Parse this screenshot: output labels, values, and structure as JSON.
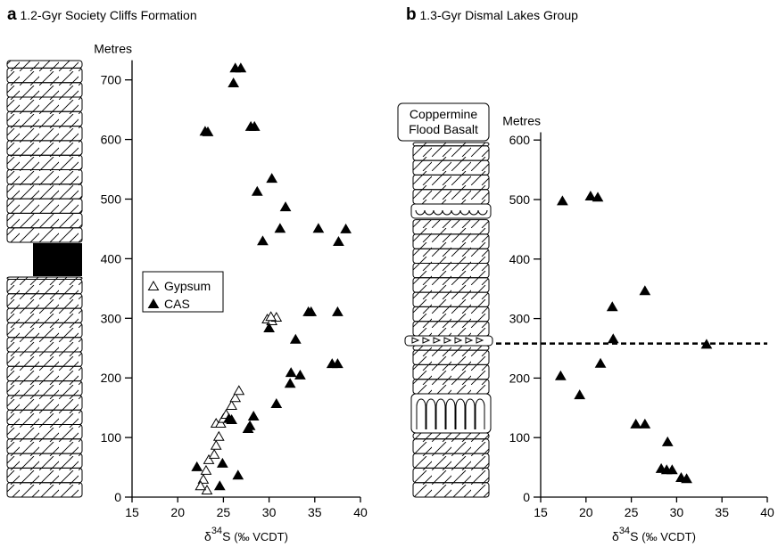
{
  "chart_data": [
    {
      "type": "scatter",
      "panel_label": "a",
      "title": "1.2-Gyr Society Cliffs Formation",
      "ylabel": "Metres",
      "xlabel": [
        "δ",
        "34",
        "S",
        "(‰ VCDT)"
      ],
      "xlim": [
        15,
        40
      ],
      "xticks": [
        15,
        20,
        25,
        30,
        35,
        40
      ],
      "ylim": [
        0,
        730
      ],
      "yticks": [
        0,
        100,
        200,
        300,
        400,
        500,
        600,
        700
      ],
      "legend": "left",
      "series": [
        {
          "name": "Gypsum",
          "marker": "open",
          "color": "#000000",
          "x": [
            23.2,
            22.8,
            22.5,
            23.1,
            23.4,
            24.0,
            24.2,
            24.5,
            24.2,
            24.7,
            25.0,
            25.3,
            25.9,
            26.3,
            26.7,
            29.8,
            30.3,
            30.8,
            30.2
          ],
          "values": [
            12,
            30,
            19,
            45,
            63,
            72,
            87,
            102,
            124,
            124,
            132,
            139,
            154,
            167,
            179,
            299,
            296,
            302,
            303
          ]
        },
        {
          "name": "CAS",
          "marker": "filled",
          "color": "#000000",
          "x": [
            26.3,
            26.9,
            26.1,
            23.0,
            23.3,
            28.0,
            28.4,
            30.3,
            28.7,
            31.8,
            31.2,
            29.3,
            35.4,
            37.6,
            38.4,
            37.5,
            34.3,
            34.6,
            30.0,
            32.9,
            36.9,
            37.5,
            33.4,
            32.4,
            32.3,
            30.8,
            28.3,
            27.9,
            27.7,
            25.6,
            25.9,
            24.9,
            24.6,
            26.6,
            22.1
          ],
          "values": [
            720,
            720,
            695,
            614,
            613,
            622,
            622,
            535,
            513,
            487,
            451,
            430,
            451,
            429,
            450,
            311,
            311,
            311,
            284,
            265,
            224,
            224,
            205,
            209,
            191,
            157,
            136,
            120,
            115,
            132,
            130,
            57,
            19,
            37,
            51
          ]
        }
      ]
    },
    {
      "type": "scatter",
      "panel_label": "b",
      "title": "1.3-Gyr Dismal Lakes Group",
      "ylabel": "Metres",
      "xlabel": [
        "δ",
        "34",
        "S",
        "(‰ VCDT)"
      ],
      "annotation": [
        "Coppermine",
        "Flood Basalt"
      ],
      "xlim": [
        15,
        40
      ],
      "xticks": [
        15,
        20,
        25,
        30,
        35,
        40
      ],
      "ylim": [
        0,
        610
      ],
      "yticks": [
        0,
        100,
        200,
        300,
        400,
        500,
        600
      ],
      "hline": 258,
      "series": [
        {
          "marker": "filled",
          "color": "#000000",
          "x": [
            17.4,
            20.5,
            21.3,
            26.5,
            22.9,
            23.0,
            21.6,
            17.2,
            19.3,
            33.3,
            25.5,
            26.5,
            28.3,
            28.9,
            29.5,
            30.5,
            31.1,
            29.0
          ],
          "values": [
            498,
            506,
            504,
            347,
            320,
            266,
            225,
            204,
            172,
            257,
            123,
            123,
            48,
            46,
            46,
            33,
            31,
            93
          ]
        }
      ]
    }
  ]
}
